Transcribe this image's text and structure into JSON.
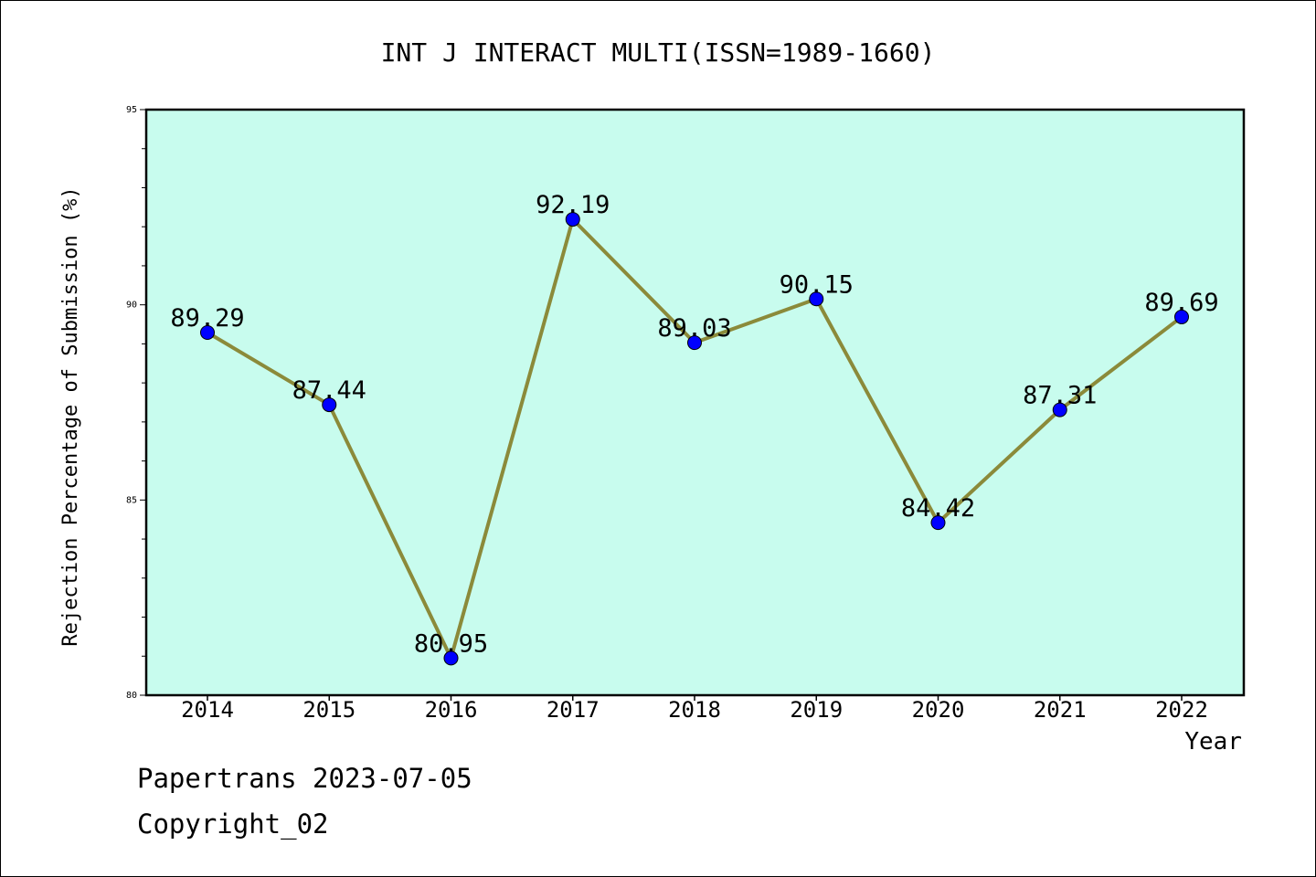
{
  "chart_data": {
    "type": "line",
    "title": "INT J INTERACT MULTI(ISSN=1989-1660)",
    "xlabel": "Year",
    "ylabel": "Rejection Percentage of Submission (%)",
    "categories": [
      "2014",
      "2015",
      "2016",
      "2017",
      "2018",
      "2019",
      "2020",
      "2021",
      "2022"
    ],
    "values": [
      89.29,
      87.44,
      80.95,
      92.19,
      89.03,
      90.15,
      84.42,
      87.31,
      89.69
    ],
    "data_labels": [
      "89.29",
      "87.44",
      "80.95",
      "92.19",
      "89.03",
      "90.15",
      "84.42",
      "87.31",
      "89.69"
    ],
    "ylim": [
      80,
      95
    ],
    "yticks": [
      "80",
      "85",
      "90",
      "95"
    ],
    "grid": false,
    "colors": {
      "plot_background": "#c8fcee",
      "line": "#8b8a3a",
      "marker": "#0000ff"
    }
  },
  "footer": {
    "line1": "Papertrans 2023-07-05",
    "line2": "Copyright_02"
  }
}
